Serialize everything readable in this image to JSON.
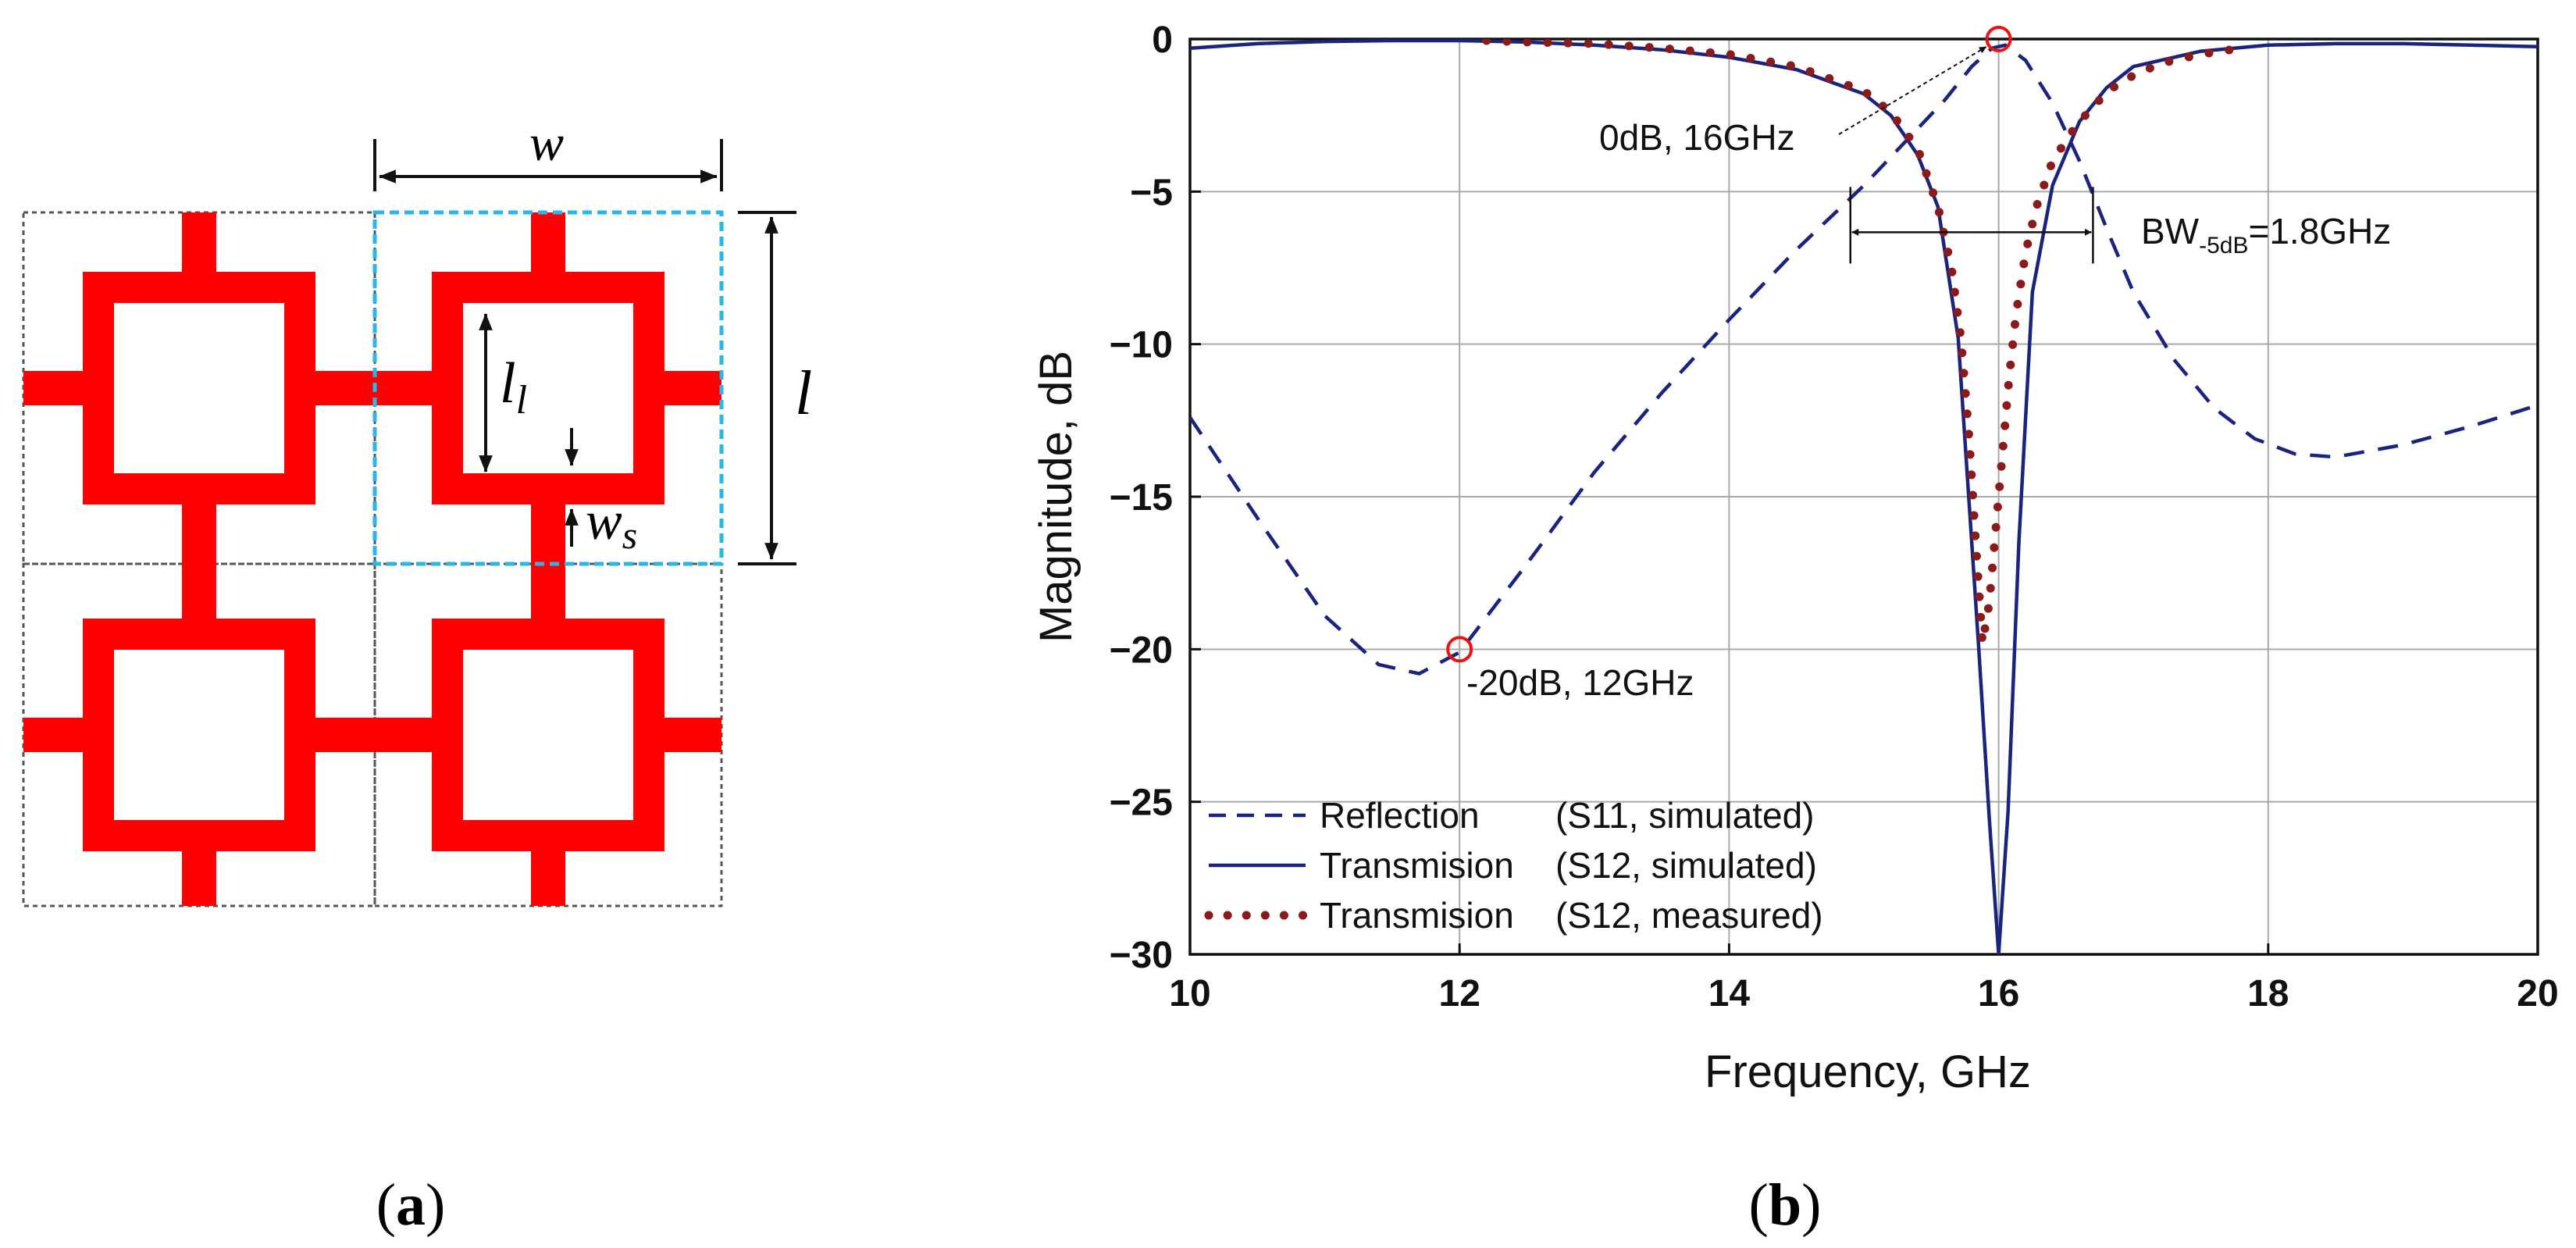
{
  "panel_a": {
    "caption_open": "(",
    "caption_letter": "a",
    "caption_close": ")",
    "unit_color": "#ff0000",
    "highlight_color": "#29b6e8",
    "grid_color": "#555555",
    "dims": {
      "w": "w",
      "l": "l",
      "ll_main": "l",
      "ll_sub": "l",
      "ws_main": "w",
      "ws_sub": "s"
    }
  },
  "panel_b": {
    "caption_open": "(",
    "caption_letter": "b",
    "caption_close": ")",
    "annotations": {
      "marker_top": "0dB, 16GHz",
      "marker_bottom": "-20dB, 12GHz",
      "bw_prefix": "BW",
      "bw_sub": "-5dB",
      "bw_value": "=1.8GHz"
    },
    "marker_color": "#ee1111"
  },
  "chart_data": {
    "type": "line",
    "title": "",
    "xlabel": "Frequency, GHz",
    "ylabel": "Magnitude, dB",
    "xlim": [
      10,
      20
    ],
    "ylim": [
      -30,
      0
    ],
    "xticks": [
      10,
      12,
      14,
      16,
      18,
      20
    ],
    "yticks": [
      0,
      -5,
      -10,
      -15,
      -20,
      -25,
      -30
    ],
    "grid": true,
    "legend_position": "bottom-left",
    "series": [
      {
        "name": "Reflection",
        "legend_label": "Reflection",
        "legend_note": "(S11, simulated)",
        "color": "#1a237e",
        "style": "dashed",
        "x": [
          10,
          10.5,
          11,
          11.4,
          11.7,
          12,
          12.5,
          13,
          13.5,
          14,
          14.5,
          15,
          15.3,
          15.6,
          15.8,
          15.95,
          16.05,
          16.2,
          16.4,
          16.6,
          16.8,
          17,
          17.3,
          17.6,
          17.9,
          18.2,
          18.5,
          19,
          19.5,
          20
        ],
        "y": [
          -12.4,
          -15.7,
          -18.9,
          -20.5,
          -20.8,
          -20.1,
          -17.2,
          -14.2,
          -11.6,
          -9.2,
          -6.9,
          -4.8,
          -3.4,
          -2.0,
          -0.9,
          -0.3,
          -0.2,
          -0.7,
          -2.1,
          -4.0,
          -6.2,
          -8.3,
          -10.5,
          -12.1,
          -13.1,
          -13.6,
          -13.7,
          -13.3,
          -12.7,
          -12.0
        ]
      },
      {
        "name": "Transmision",
        "legend_label": "Transmision",
        "legend_note": "(S12, simulated)",
        "color": "#1a237e",
        "style": "solid",
        "x": [
          10,
          10.5,
          11,
          11.5,
          12,
          12.5,
          13,
          13.5,
          14,
          14.5,
          15,
          15.2,
          15.4,
          15.55,
          15.7,
          15.85,
          15.93,
          16.0,
          16.07,
          16.15,
          16.25,
          16.4,
          16.6,
          16.8,
          17,
          17.5,
          18,
          18.5,
          19,
          19.5,
          20
        ],
        "y": [
          -0.3,
          -0.15,
          -0.08,
          -0.05,
          -0.05,
          -0.1,
          -0.2,
          -0.35,
          -0.6,
          -1.0,
          -1.8,
          -2.5,
          -3.8,
          -5.5,
          -9.8,
          -19.8,
          -25.5,
          -30.0,
          -25.3,
          -16.5,
          -8.3,
          -4.8,
          -2.7,
          -1.6,
          -0.9,
          -0.4,
          -0.2,
          -0.15,
          -0.15,
          -0.2,
          -0.25
        ]
      },
      {
        "name": "Transmision",
        "legend_label": "Transmision",
        "legend_note": "(S12, measured)",
        "color": "#8b1a1a",
        "style": "dotted",
        "x": [
          12.2,
          12.5,
          13,
          13.5,
          14,
          14.5,
          15,
          15.2,
          15.4,
          15.55,
          15.65,
          15.72,
          15.78,
          15.83,
          15.88,
          15.93,
          15.98,
          16.03,
          16.08,
          16.13,
          16.2,
          16.28,
          16.4,
          16.55,
          16.7,
          16.9,
          17.2,
          17.5,
          17.8
        ],
        "y": [
          -0.05,
          -0.1,
          -0.15,
          -0.3,
          -0.5,
          -0.9,
          -1.7,
          -2.4,
          -3.6,
          -5.5,
          -7.5,
          -9.8,
          -13.0,
          -16.5,
          -19.8,
          -18.5,
          -16.0,
          -13.5,
          -11.0,
          -9.0,
          -7.0,
          -5.5,
          -4.0,
          -3.0,
          -2.2,
          -1.4,
          -0.8,
          -0.5,
          -0.3
        ]
      }
    ],
    "markers": [
      {
        "x": 16,
        "y": 0,
        "label": "0dB, 16GHz"
      },
      {
        "x": 12,
        "y": -20,
        "label": "-20dB, 12GHz"
      }
    ],
    "bandwidth": {
      "x_start": 14.9,
      "x_end": 16.7,
      "y": -5,
      "label": "BW-5dB=1.8GHz"
    }
  }
}
